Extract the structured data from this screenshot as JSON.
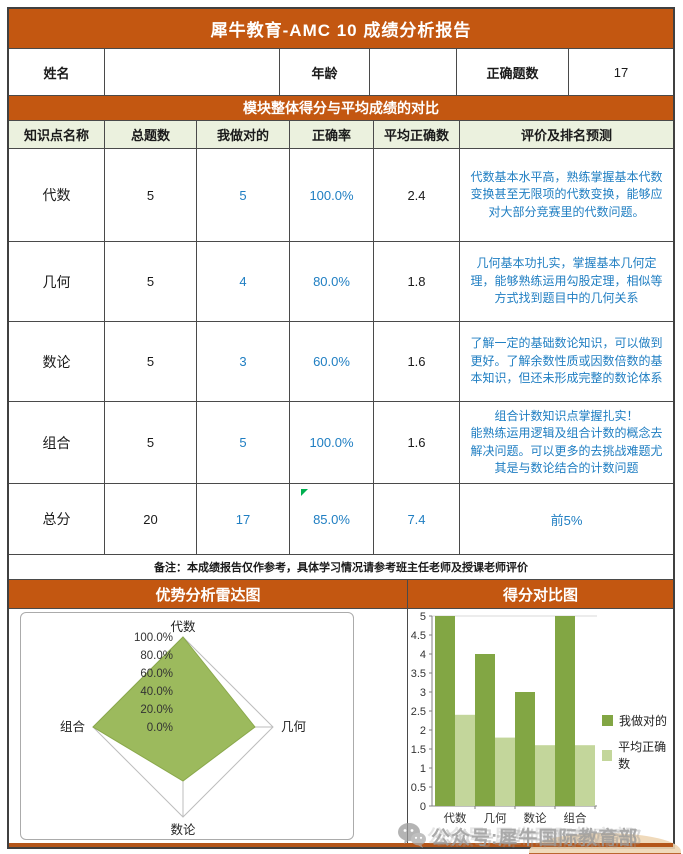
{
  "title": "犀牛教育-AMC 10 成绩分析报告",
  "info_row": {
    "name_label": "姓名",
    "name_value": "",
    "age_label": "年龄",
    "age_value": "",
    "correct_label": "正确题数",
    "correct_value": "17"
  },
  "section_title": "模块整体得分与平均成绩的对比",
  "table": {
    "headers": [
      "知识点名称",
      "总题数",
      "我做对的",
      "正确率",
      "平均正确数",
      "评价及排名预测"
    ],
    "rows": [
      {
        "name": "代数",
        "total": "5",
        "mine": "5",
        "rate": "100.0%",
        "avg": "2.4",
        "comment": "代数基本水平高，熟练掌握基本代数变换甚至无限项的代数变换，能够应对大部分竞赛里的代数问题。"
      },
      {
        "name": "几何",
        "total": "5",
        "mine": "4",
        "rate": "80.0%",
        "avg": "1.8",
        "comment": "几何基本功扎实，掌握基本几何定理，能够熟练运用勾股定理，相似等方式找到题目中的几何关系"
      },
      {
        "name": "数论",
        "total": "5",
        "mine": "3",
        "rate": "60.0%",
        "avg": "1.6",
        "comment": "了解一定的基础数论知识，可以做到更好。了解余数性质或因数倍数的基本知识，但还未形成完整的数论体系"
      },
      {
        "name": "组合",
        "total": "5",
        "mine": "5",
        "rate": "100.0%",
        "avg": "1.6",
        "comment": "组合计数知识点掌握扎实！\n能熟练运用逻辑及组合计数的概念去解决问题。可以更多的去挑战难题尤其是与数论结合的计数问题"
      }
    ],
    "total_row": {
      "name": "总分",
      "total": "20",
      "mine": "17",
      "rate": "85.0%",
      "avg": "7.4",
      "comment": "前5%"
    }
  },
  "remark": "备注：本成绩报告仅作参考，具体学习情况请参考班主任老师及授课老师评价",
  "charts_header": {
    "left": "优势分析雷达图",
    "right": "得分对比图"
  },
  "chart_data": [
    {
      "type": "radar",
      "title": "优势分析雷达图",
      "categories": [
        "代数",
        "几何",
        "数论",
        "组合"
      ],
      "values": [
        100.0,
        80.0,
        60.0,
        100.0
      ],
      "unit": "%",
      "tick_labels": [
        "100.0%",
        "80.0%",
        "60.0%",
        "40.0%",
        "20.0%",
        "0.0%"
      ],
      "range": [
        0,
        100
      ],
      "fill_color": "#9CBA5D",
      "grid": "outer-diamond-and-spokes"
    },
    {
      "type": "bar",
      "title": "得分对比图",
      "categories": [
        "代数",
        "几何",
        "数论",
        "组合"
      ],
      "series": [
        {
          "name": "我做对的",
          "values": [
            5,
            4,
            3,
            5
          ],
          "color": "#82A644"
        },
        {
          "name": "平均正确数",
          "values": [
            2.4,
            1.8,
            1.6,
            1.6
          ],
          "color": "#C3D69B"
        }
      ],
      "ylim": [
        0,
        5
      ],
      "ytick_step": 0.5,
      "legend_position": "right"
    }
  ],
  "watermark": {
    "icon": "wechat-icon",
    "text": "公众号:犀牛国际教育部"
  },
  "colors": {
    "accent_orange": "#C35711",
    "header_green": "#EBF1DE",
    "value_blue": "#1F7EC2",
    "bar_dark_green": "#82A644",
    "bar_light_green": "#C3D69B",
    "radar_fill": "#9CBA5D",
    "bottom_rule": "#B4561A"
  }
}
